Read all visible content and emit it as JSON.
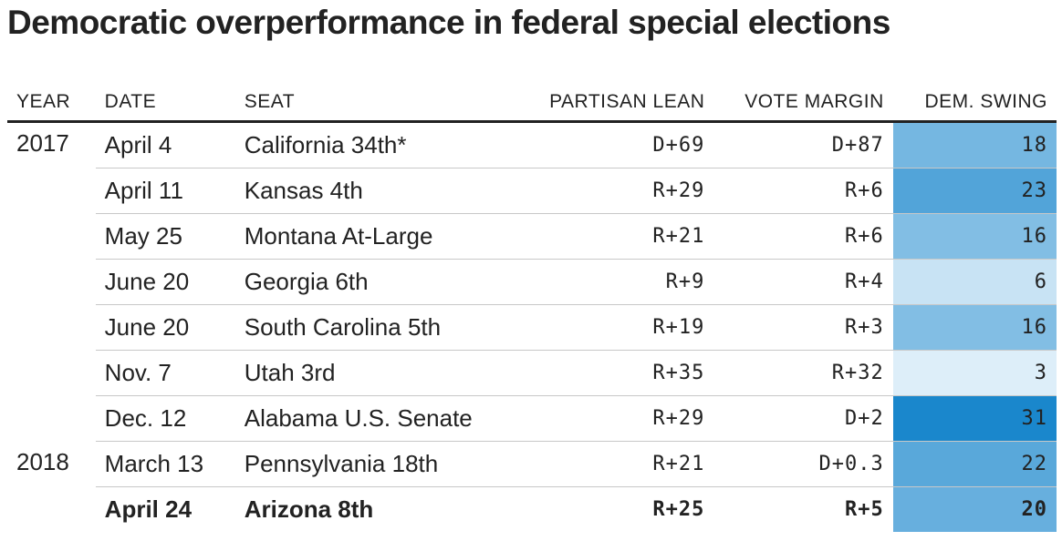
{
  "title": "Democratic overperformance in federal special elections",
  "columns": {
    "year": "YEAR",
    "date": "DATE",
    "seat": "SEAT",
    "partisan_lean": "PARTISAN LEAN",
    "vote_margin": "VOTE MARGIN",
    "dem_swing": "DEM. SWING"
  },
  "groups": [
    {
      "year": "2017",
      "rows": [
        {
          "date": "April 4",
          "seat": "California 34th*",
          "lean": "D+69",
          "margin": "D+87",
          "swing": 18
        },
        {
          "date": "April 11",
          "seat": "Kansas 4th",
          "lean": "R+29",
          "margin": "R+6",
          "swing": 23
        },
        {
          "date": "May 25",
          "seat": "Montana At-Large",
          "lean": "R+21",
          "margin": "R+6",
          "swing": 16
        },
        {
          "date": "June 20",
          "seat": "Georgia 6th",
          "lean": "R+9",
          "margin": "R+4",
          "swing": 6
        },
        {
          "date": "June 20",
          "seat": "South Carolina 5th",
          "lean": "R+19",
          "margin": "R+3",
          "swing": 16
        },
        {
          "date": "Nov. 7",
          "seat": "Utah 3rd",
          "lean": "R+35",
          "margin": "R+32",
          "swing": 3
        },
        {
          "date": "Dec. 12",
          "seat": "Alabama U.S. Senate",
          "lean": "R+29",
          "margin": "D+2",
          "swing": 31
        }
      ]
    },
    {
      "year": "2018",
      "rows": [
        {
          "date": "March 13",
          "seat": "Pennsylvania 18th",
          "lean": "R+21",
          "margin": "D+0.3",
          "swing": 22
        },
        {
          "date": "April 24",
          "seat": "Arizona 8th",
          "lean": "R+25",
          "margin": "R+5",
          "swing": 20,
          "bold": true
        }
      ]
    }
  ],
  "colors": {
    "swing_low": "#ddeef9",
    "swing_high": "#1a87cc",
    "text": "#222222",
    "rule": "#c8c8c8"
  },
  "chart_data": {
    "type": "table",
    "title": "Democratic overperformance in federal special elections",
    "columns": [
      "YEAR",
      "DATE",
      "SEAT",
      "PARTISAN LEAN",
      "VOTE MARGIN",
      "DEM. SWING"
    ],
    "rows": [
      [
        "2017",
        "April 4",
        "California 34th*",
        "D+69",
        "D+87",
        18
      ],
      [
        "2017",
        "April 11",
        "Kansas 4th",
        "R+29",
        "R+6",
        23
      ],
      [
        "2017",
        "May 25",
        "Montana At-Large",
        "R+21",
        "R+6",
        16
      ],
      [
        "2017",
        "June 20",
        "Georgia 6th",
        "R+9",
        "R+4",
        6
      ],
      [
        "2017",
        "June 20",
        "South Carolina 5th",
        "R+19",
        "R+3",
        16
      ],
      [
        "2017",
        "Nov. 7",
        "Utah 3rd",
        "R+35",
        "R+32",
        3
      ],
      [
        "2017",
        "Dec. 12",
        "Alabama U.S. Senate",
        "R+29",
        "D+2",
        31
      ],
      [
        "2018",
        "March 13",
        "Pennsylvania 18th",
        "R+21",
        "D+0.3",
        22
      ],
      [
        "2018",
        "April 24",
        "Arizona 8th",
        "R+25",
        "R+5",
        20
      ]
    ]
  }
}
